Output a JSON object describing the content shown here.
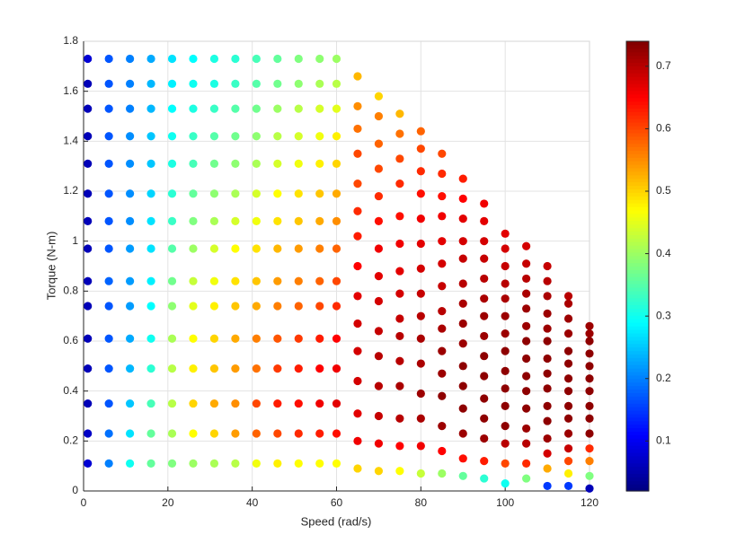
{
  "chart_data": {
    "type": "scatter",
    "xlabel": "Speed (rad/s)",
    "ylabel": "Torque (N-m)",
    "xlim": [
      0,
      120
    ],
    "xticks": [
      0,
      20,
      40,
      60,
      80,
      100,
      120
    ],
    "ylim": [
      0,
      1.8
    ],
    "yticks": [
      0,
      0.2,
      0.4,
      0.6,
      0.8,
      1,
      1.2,
      1.4,
      1.6,
      1.8
    ],
    "grid": true,
    "colormap": "jet",
    "clim": [
      0.02,
      0.74
    ],
    "cticks": [
      0.1,
      0.2,
      0.3,
      0.4,
      0.5,
      0.6,
      0.7
    ],
    "x": [
      1,
      1,
      1,
      1,
      1,
      1,
      1,
      1,
      1,
      1,
      1,
      1,
      1,
      1,
      1,
      6,
      6,
      6,
      6,
      6,
      6,
      6,
      6,
      6,
      6,
      6,
      6,
      6,
      6,
      6,
      11,
      11,
      11,
      11,
      11,
      11,
      11,
      11,
      11,
      11,
      11,
      11,
      11,
      11,
      11,
      16,
      16,
      16,
      16,
      16,
      16,
      16,
      16,
      16,
      16,
      16,
      16,
      16,
      16,
      16,
      21,
      21,
      21,
      21,
      21,
      21,
      21,
      21,
      21,
      21,
      21,
      21,
      21,
      21,
      21,
      26,
      26,
      26,
      26,
      26,
      26,
      26,
      26,
      26,
      26,
      26,
      26,
      26,
      26,
      26,
      31,
      31,
      31,
      31,
      31,
      31,
      31,
      31,
      31,
      31,
      31,
      31,
      31,
      31,
      31,
      36,
      36,
      36,
      36,
      36,
      36,
      36,
      36,
      36,
      36,
      36,
      36,
      36,
      36,
      36,
      41,
      41,
      41,
      41,
      41,
      41,
      41,
      41,
      41,
      41,
      41,
      41,
      41,
      41,
      41,
      46,
      46,
      46,
      46,
      46,
      46,
      46,
      46,
      46,
      46,
      46,
      46,
      46,
      46,
      46,
      51,
      51,
      51,
      51,
      51,
      51,
      51,
      51,
      51,
      51,
      51,
      51,
      51,
      51,
      51,
      56,
      56,
      56,
      56,
      56,
      56,
      56,
      56,
      56,
      56,
      56,
      56,
      56,
      56,
      56,
      60,
      60,
      60,
      60,
      60,
      60,
      60,
      60,
      60,
      60,
      60,
      60,
      60,
      60,
      60,
      65,
      65,
      65,
      65,
      65,
      65,
      65,
      65,
      65,
      65,
      65,
      65,
      65,
      65,
      65,
      70,
      70,
      70,
      70,
      70,
      70,
      70,
      70,
      70,
      70,
      70,
      70,
      70,
      70,
      70,
      75,
      75,
      75,
      75,
      75,
      75,
      75,
      75,
      75,
      75,
      75,
      75,
      75,
      75,
      75,
      80,
      80,
      80,
      80,
      80,
      80,
      80,
      80,
      80,
      80,
      80,
      80,
      80,
      80,
      80,
      85,
      85,
      85,
      85,
      85,
      85,
      85,
      85,
      85,
      85,
      85,
      85,
      85,
      85,
      85,
      90,
      90,
      90,
      90,
      90,
      90,
      90,
      90,
      90,
      90,
      90,
      90,
      90,
      90,
      90,
      95,
      95,
      95,
      95,
      95,
      95,
      95,
      95,
      95,
      95,
      95,
      95,
      95,
      95,
      95,
      100,
      100,
      100,
      100,
      100,
      100,
      100,
      100,
      100,
      100,
      100,
      100,
      100,
      100,
      100,
      105,
      105,
      105,
      105,
      105,
      105,
      105,
      105,
      105,
      105,
      105,
      105,
      105,
      105,
      105,
      110,
      110,
      110,
      110,
      110,
      110,
      110,
      110,
      110,
      110,
      110,
      110,
      110,
      110,
      110,
      115,
      115,
      115,
      115,
      115,
      115,
      115,
      115,
      115,
      115,
      115,
      115,
      115,
      115,
      115,
      120,
      120,
      120,
      120,
      120,
      120,
      120,
      120,
      120,
      120,
      120,
      120,
      120,
      120
    ],
    "y": [
      0.11,
      0.23,
      0.35,
      0.49,
      0.61,
      0.74,
      0.84,
      0.97,
      1.08,
      1.19,
      1.31,
      1.42,
      1.53,
      1.63,
      1.73,
      0.11,
      0.23,
      0.35,
      0.49,
      0.61,
      0.74,
      0.84,
      0.97,
      1.08,
      1.19,
      1.31,
      1.42,
      1.53,
      1.63,
      1.73,
      0.11,
      0.23,
      0.35,
      0.49,
      0.61,
      0.74,
      0.84,
      0.97,
      1.08,
      1.19,
      1.31,
      1.42,
      1.53,
      1.63,
      1.73,
      0.11,
      0.23,
      0.35,
      0.49,
      0.61,
      0.74,
      0.84,
      0.97,
      1.08,
      1.19,
      1.31,
      1.42,
      1.53,
      1.63,
      1.73,
      0.11,
      0.23,
      0.35,
      0.49,
      0.61,
      0.74,
      0.84,
      0.97,
      1.08,
      1.19,
      1.31,
      1.42,
      1.53,
      1.63,
      1.73,
      0.11,
      0.23,
      0.35,
      0.49,
      0.61,
      0.74,
      0.84,
      0.97,
      1.08,
      1.19,
      1.31,
      1.42,
      1.53,
      1.63,
      1.73,
      0.11,
      0.23,
      0.35,
      0.49,
      0.61,
      0.74,
      0.84,
      0.97,
      1.08,
      1.19,
      1.31,
      1.42,
      1.53,
      1.63,
      1.73,
      0.11,
      0.23,
      0.35,
      0.49,
      0.61,
      0.74,
      0.84,
      0.97,
      1.08,
      1.19,
      1.31,
      1.42,
      1.53,
      1.63,
      1.73,
      0.11,
      0.23,
      0.35,
      0.49,
      0.61,
      0.74,
      0.84,
      0.97,
      1.08,
      1.19,
      1.31,
      1.42,
      1.53,
      1.63,
      1.73,
      0.11,
      0.23,
      0.35,
      0.49,
      0.61,
      0.74,
      0.84,
      0.97,
      1.08,
      1.19,
      1.31,
      1.42,
      1.53,
      1.63,
      1.73,
      0.11,
      0.23,
      0.35,
      0.49,
      0.61,
      0.74,
      0.84,
      0.97,
      1.08,
      1.19,
      1.31,
      1.42,
      1.53,
      1.63,
      1.73,
      0.11,
      0.23,
      0.35,
      0.49,
      0.61,
      0.74,
      0.84,
      0.97,
      1.08,
      1.19,
      1.31,
      1.42,
      1.53,
      1.63,
      1.73,
      0.11,
      0.23,
      0.35,
      0.49,
      0.61,
      0.74,
      0.84,
      0.97,
      1.08,
      1.19,
      1.31,
      1.42,
      1.53,
      1.63,
      1.73,
      1.66,
      1.54,
      1.45,
      1.35,
      1.23,
      1.12,
      1.02,
      0.9,
      0.78,
      0.67,
      0.56,
      0.44,
      0.31,
      0.2,
      0.09,
      1.58,
      1.5,
      1.39,
      1.29,
      1.18,
      1.08,
      0.97,
      0.86,
      0.76,
      0.64,
      0.54,
      0.42,
      0.3,
      0.19,
      0.08,
      1.51,
      1.43,
      1.33,
      1.23,
      1.1,
      0.99,
      0.88,
      0.79,
      0.69,
      0.62,
      0.52,
      0.42,
      0.29,
      0.18,
      0.08,
      1.44,
      1.37,
      1.28,
      1.19,
      1.09,
      0.99,
      0.89,
      0.79,
      0.7,
      0.61,
      0.51,
      0.39,
      0.29,
      0.18,
      0.07,
      1.35,
      1.27,
      1.18,
      1.1,
      1,
      0.91,
      0.82,
      0.72,
      0.65,
      0.56,
      0.47,
      0.38,
      0.26,
      0.16,
      0.07,
      1.25,
      1.17,
      1.09,
      1,
      0.93,
      0.83,
      0.75,
      0.67,
      0.59,
      0.5,
      0.42,
      0.33,
      0.23,
      0.13,
      0.06,
      1.15,
      1.08,
      1,
      0.93,
      0.85,
      0.77,
      0.7,
      0.62,
      0.54,
      0.46,
      0.37,
      0.29,
      0.21,
      0.12,
      0.05,
      1.03,
      0.97,
      0.9,
      0.83,
      0.77,
      0.7,
      0.63,
      0.56,
      0.48,
      0.41,
      0.34,
      0.26,
      0.19,
      0.11,
      0.03,
      0.98,
      0.91,
      0.85,
      0.79,
      0.73,
      0.66,
      0.6,
      0.53,
      0.46,
      0.4,
      0.33,
      0.25,
      0.19,
      0.11,
      0.05,
      0.9,
      0.84,
      0.78,
      0.71,
      0.65,
      0.6,
      0.53,
      0.47,
      0.41,
      0.34,
      0.28,
      0.21,
      0.15,
      0.09,
      0.02,
      0.78,
      0.75,
      0.69,
      0.63,
      0.56,
      0.51,
      0.45,
      0.4,
      0.34,
      0.29,
      0.23,
      0.17,
      0.12,
      0.07,
      0.02,
      0.66,
      0.63,
      0.6,
      0.55,
      0.5,
      0.45,
      0.4,
      0.34,
      0.29,
      0.23,
      0.17,
      0.12,
      0.06,
      0.01
    ],
    "c": [
      0.08,
      0.07,
      0.06,
      0.06,
      0.06,
      0.06,
      0.06,
      0.06,
      0.06,
      0.06,
      0.06,
      0.06,
      0.06,
      0.06,
      0.08,
      0.2,
      0.19,
      0.17,
      0.17,
      0.17,
      0.17,
      0.18,
      0.17,
      0.17,
      0.17,
      0.17,
      0.17,
      0.17,
      0.17,
      0.17,
      0.3,
      0.27,
      0.25,
      0.24,
      0.23,
      0.22,
      0.22,
      0.22,
      0.21,
      0.21,
      0.21,
      0.21,
      0.2,
      0.2,
      0.2,
      0.36,
      0.36,
      0.34,
      0.32,
      0.3,
      0.29,
      0.28,
      0.27,
      0.27,
      0.26,
      0.25,
      0.25,
      0.24,
      0.24,
      0.23,
      0.38,
      0.41,
      0.42,
      0.42,
      0.41,
      0.39,
      0.37,
      0.35,
      0.33,
      0.32,
      0.31,
      0.3,
      0.29,
      0.28,
      0.27,
      0.4,
      0.47,
      0.5,
      0.48,
      0.47,
      0.45,
      0.43,
      0.4,
      0.38,
      0.36,
      0.34,
      0.33,
      0.31,
      0.3,
      0.29,
      0.41,
      0.5,
      0.53,
      0.51,
      0.5,
      0.48,
      0.46,
      0.44,
      0.41,
      0.39,
      0.37,
      0.35,
      0.33,
      0.31,
      0.31,
      0.42,
      0.54,
      0.55,
      0.54,
      0.53,
      0.51,
      0.49,
      0.47,
      0.44,
      0.41,
      0.39,
      0.37,
      0.35,
      0.33,
      0.32,
      0.46,
      0.58,
      0.6,
      0.57,
      0.56,
      0.53,
      0.51,
      0.49,
      0.46,
      0.44,
      0.41,
      0.39,
      0.37,
      0.35,
      0.34,
      0.48,
      0.6,
      0.63,
      0.61,
      0.59,
      0.56,
      0.54,
      0.52,
      0.49,
      0.47,
      0.44,
      0.42,
      0.4,
      0.37,
      0.36,
      0.47,
      0.62,
      0.64,
      0.63,
      0.61,
      0.58,
      0.56,
      0.54,
      0.51,
      0.49,
      0.46,
      0.44,
      0.42,
      0.39,
      0.38,
      0.47,
      0.63,
      0.66,
      0.65,
      0.63,
      0.6,
      0.58,
      0.56,
      0.53,
      0.51,
      0.48,
      0.46,
      0.44,
      0.41,
      0.39,
      0.47,
      0.64,
      0.67,
      0.66,
      0.65,
      0.62,
      0.6,
      0.58,
      0.55,
      0.53,
      0.5,
      0.48,
      0.45,
      0.42,
      0.4,
      0.52,
      0.55,
      0.57,
      0.6,
      0.6,
      0.62,
      0.63,
      0.65,
      0.67,
      0.68,
      0.68,
      0.68,
      0.67,
      0.66,
      0.5,
      0.5,
      0.56,
      0.58,
      0.6,
      0.62,
      0.64,
      0.66,
      0.67,
      0.68,
      0.69,
      0.7,
      0.7,
      0.69,
      0.66,
      0.5,
      0.52,
      0.57,
      0.6,
      0.62,
      0.64,
      0.66,
      0.67,
      0.68,
      0.69,
      0.7,
      0.7,
      0.71,
      0.7,
      0.65,
      0.47,
      0.58,
      0.6,
      0.62,
      0.64,
      0.66,
      0.67,
      0.68,
      0.69,
      0.7,
      0.71,
      0.71,
      0.72,
      0.71,
      0.66,
      0.43,
      0.6,
      0.62,
      0.64,
      0.66,
      0.67,
      0.68,
      0.69,
      0.7,
      0.71,
      0.72,
      0.72,
      0.73,
      0.72,
      0.65,
      0.4,
      0.63,
      0.65,
      0.67,
      0.68,
      0.69,
      0.7,
      0.71,
      0.72,
      0.72,
      0.73,
      0.73,
      0.73,
      0.72,
      0.64,
      0.36,
      0.66,
      0.67,
      0.68,
      0.69,
      0.7,
      0.71,
      0.72,
      0.72,
      0.73,
      0.73,
      0.73,
      0.73,
      0.72,
      0.63,
      0.32,
      0.67,
      0.68,
      0.69,
      0.7,
      0.71,
      0.72,
      0.72,
      0.73,
      0.73,
      0.73,
      0.73,
      0.73,
      0.7,
      0.6,
      0.3,
      0.68,
      0.69,
      0.7,
      0.71,
      0.72,
      0.72,
      0.73,
      0.73,
      0.73,
      0.73,
      0.73,
      0.72,
      0.7,
      0.62,
      0.38,
      0.69,
      0.7,
      0.71,
      0.72,
      0.72,
      0.73,
      0.73,
      0.73,
      0.73,
      0.73,
      0.73,
      0.72,
      0.68,
      0.53,
      0.15,
      0.7,
      0.71,
      0.72,
      0.72,
      0.73,
      0.73,
      0.73,
      0.73,
      0.73,
      0.73,
      0.72,
      0.69,
      0.6,
      0.48,
      0.15,
      0.72,
      0.72,
      0.73,
      0.73,
      0.73,
      0.73,
      0.73,
      0.73,
      0.73,
      0.73,
      0.62,
      0.56,
      0.38,
      0.06
    ]
  }
}
